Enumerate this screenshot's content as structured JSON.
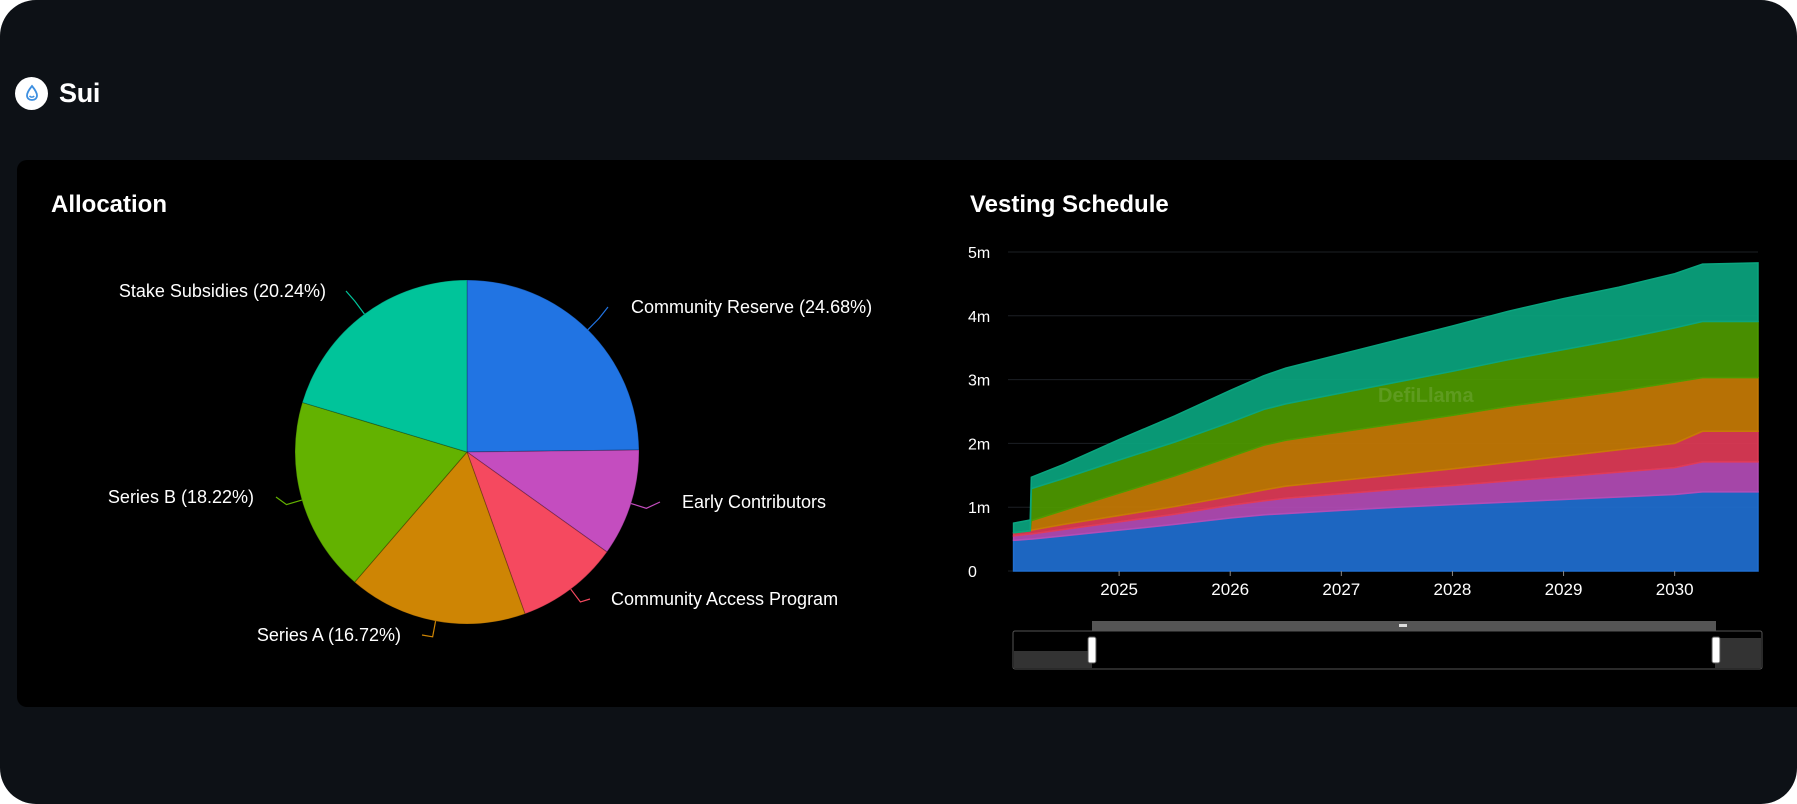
{
  "app": {
    "name": "Sui",
    "logo_icon": "sui-droplet-icon"
  },
  "allocation": {
    "title": "Allocation"
  },
  "vesting": {
    "title": "Vesting Schedule",
    "watermark": "DefiLlama"
  },
  "chart_data": [
    {
      "type": "pie",
      "title": "Allocation",
      "slices": [
        {
          "label": "Community Reserve (24.68%)",
          "value": 24.68,
          "color": "#2174e3"
        },
        {
          "label": "Early Contributors",
          "value": 10.0,
          "color": "#c44dbf"
        },
        {
          "label": "Community Access Program",
          "value": 9.6,
          "color": "#f5495f"
        },
        {
          "label": "Series A (16.72%)",
          "value": 16.72,
          "color": "#ce8504"
        },
        {
          "label": "Series B (18.22%)",
          "value": 18.22,
          "color": "#63b200"
        },
        {
          "label": "Stake Subsidies (20.24%)",
          "value": 20.24,
          "color": "#00c49a"
        }
      ]
    },
    {
      "type": "area",
      "title": "Vesting Schedule",
      "stacked": true,
      "x": [
        2024.05,
        2024.2,
        2024.21,
        2024.5,
        2025.0,
        2025.5,
        2026.0,
        2026.3,
        2026.5,
        2027.0,
        2027.5,
        2028.0,
        2028.5,
        2029.0,
        2029.5,
        2030.0,
        2030.25,
        2030.75
      ],
      "xticks": [
        "2025",
        "2026",
        "2027",
        "2028",
        "2029",
        "2030"
      ],
      "xtick_values": [
        2025,
        2026,
        2027,
        2028,
        2029,
        2030
      ],
      "yticks": [
        "0",
        "1m",
        "2m",
        "3m",
        "4m",
        "5m"
      ],
      "ytick_values": [
        0,
        1,
        2,
        3,
        4,
        5
      ],
      "ylim": [
        0,
        5
      ],
      "xlim": [
        2024.0,
        2030.75
      ],
      "series": [
        {
          "color": "#1f6fd1",
          "values": [
            0.48,
            0.5,
            0.5,
            0.55,
            0.64,
            0.73,
            0.83,
            0.88,
            0.9,
            0.95,
            1.0,
            1.04,
            1.08,
            1.12,
            1.16,
            1.2,
            1.24,
            1.24
          ]
        },
        {
          "color": "#b34cb6",
          "values": [
            0.07,
            0.08,
            0.08,
            0.1,
            0.13,
            0.16,
            0.2,
            0.22,
            0.24,
            0.26,
            0.28,
            0.3,
            0.33,
            0.36,
            0.39,
            0.42,
            0.47,
            0.47
          ]
        },
        {
          "color": "#e03b57",
          "values": [
            0.05,
            0.05,
            0.06,
            0.08,
            0.1,
            0.12,
            0.14,
            0.17,
            0.19,
            0.21,
            0.23,
            0.26,
            0.29,
            0.32,
            0.35,
            0.38,
            0.48,
            0.48
          ]
        },
        {
          "color": "#c77b05",
          "values": [
            0.0,
            0.0,
            0.15,
            0.22,
            0.35,
            0.48,
            0.62,
            0.7,
            0.72,
            0.76,
            0.8,
            0.84,
            0.88,
            0.9,
            0.92,
            0.96,
            0.84,
            0.84
          ]
        },
        {
          "color": "#4e9a00",
          "values": [
            0.0,
            0.0,
            0.5,
            0.5,
            0.52,
            0.53,
            0.54,
            0.56,
            0.57,
            0.61,
            0.65,
            0.69,
            0.73,
            0.77,
            0.81,
            0.85,
            0.88,
            0.88
          ]
        },
        {
          "color": "#0aa57f",
          "values": [
            0.15,
            0.17,
            0.18,
            0.22,
            0.32,
            0.41,
            0.5,
            0.53,
            0.56,
            0.61,
            0.66,
            0.71,
            0.76,
            0.8,
            0.82,
            0.85,
            0.9,
            0.92
          ]
        }
      ]
    }
  ]
}
